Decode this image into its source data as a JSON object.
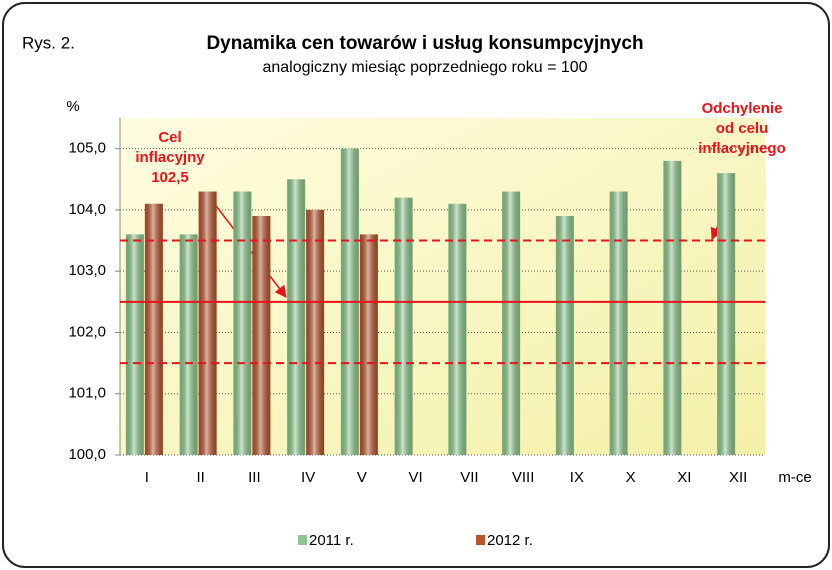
{
  "chart_data": {
    "type": "bar",
    "label": "Rys. 2.",
    "title": "Dynamika cen towarów i usług konsumpcyjnych",
    "subtitle": "analogiczny miesiąc poprzedniego roku = 100",
    "y_label": "%",
    "x_label": "m-ce",
    "categories": [
      "I",
      "II",
      "III",
      "IV",
      "V",
      "VI",
      "VII",
      "VIII",
      "IX",
      "X",
      "XI",
      "XII"
    ],
    "series": [
      {
        "name": "2011 r.",
        "color": "#8cc88c",
        "values": [
          103.6,
          103.6,
          104.3,
          104.5,
          105.0,
          104.2,
          104.1,
          104.3,
          103.9,
          104.3,
          104.8,
          104.6
        ]
      },
      {
        "name": "2012 r.",
        "color": "#b8532a",
        "values": [
          104.1,
          104.3,
          103.9,
          104.0,
          103.6,
          null,
          null,
          null,
          null,
          null,
          null,
          null
        ]
      }
    ],
    "ylim": [
      100,
      105.5
    ],
    "yticks": [
      {
        "value": 100,
        "label": "100,0"
      },
      {
        "value": 101,
        "label": "101,0"
      },
      {
        "value": 102,
        "label": "102,0"
      },
      {
        "value": 103,
        "label": "103,0"
      },
      {
        "value": 104,
        "label": "104,0"
      },
      {
        "value": 105,
        "label": "105,0"
      }
    ],
    "grid": true,
    "reference_lines": [
      {
        "value": 102.5,
        "style": "solid",
        "color": "#e8141a"
      },
      {
        "value": 103.5,
        "style": "dashed",
        "color": "#e8141a"
      },
      {
        "value": 101.5,
        "style": "dashed",
        "color": "#e8141a"
      }
    ],
    "annotations": [
      {
        "lines": [
          "Cel",
          "inflacyjny",
          "102,5"
        ]
      },
      {
        "lines": [
          "Odchylenie",
          "od celu",
          "inflacyjnego"
        ]
      }
    ],
    "legend": "bottom"
  }
}
